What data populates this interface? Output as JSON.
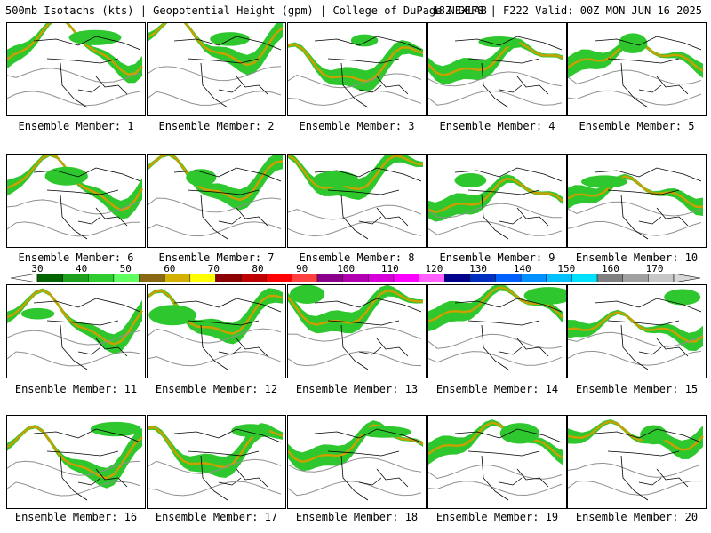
{
  "header": {
    "title": "500mb Isotachs (kts) | Geopotential Height (gpm) | College of DuPage NEXLAB",
    "run_info": "18Z GEFS | F222 Valid: 00Z MON JUN 16 2025"
  },
  "members": [
    {
      "caption": "Ensemble Member: 1"
    },
    {
      "caption": "Ensemble Member: 2"
    },
    {
      "caption": "Ensemble Member: 3"
    },
    {
      "caption": "Ensemble Member: 4"
    },
    {
      "caption": "Ensemble Member: 5"
    },
    {
      "caption": "Ensemble Member: 6"
    },
    {
      "caption": "Ensemble Member: 7"
    },
    {
      "caption": "Ensemble Member: 8"
    },
    {
      "caption": "Ensemble Member: 9"
    },
    {
      "caption": "Ensemble Member: 10"
    },
    {
      "caption": "Ensemble Member: 11"
    },
    {
      "caption": "Ensemble Member: 12"
    },
    {
      "caption": "Ensemble Member: 13"
    },
    {
      "caption": "Ensemble Member: 14"
    },
    {
      "caption": "Ensemble Member: 15"
    },
    {
      "caption": "Ensemble Member: 16"
    },
    {
      "caption": "Ensemble Member: 17"
    },
    {
      "caption": "Ensemble Member: 18"
    },
    {
      "caption": "Ensemble Member: 19"
    },
    {
      "caption": "Ensemble Member: 20"
    }
  ],
  "colorbar": {
    "labels": [
      "30",
      "40",
      "50",
      "60",
      "70",
      "80",
      "90",
      "100",
      "110",
      "120",
      "130",
      "140",
      "150",
      "160",
      "170"
    ],
    "colors": [
      "#006400",
      "#1fa01f",
      "#2ecc2e",
      "#60ff60",
      "#8b6914",
      "#d4b000",
      "#ffff00",
      "#8b0000",
      "#c00000",
      "#ff0000",
      "#ff4040",
      "#8b008b",
      "#b000b0",
      "#d800d8",
      "#ff00ff",
      "#ff60ff",
      "#00008b",
      "#0030c0",
      "#0060ff",
      "#0090ff",
      "#00c0ff",
      "#00e0ff",
      "#808080",
      "#a0a0a0",
      "#c8c8c8"
    ]
  },
  "map_style": {
    "jet_fill": "#2ec82e",
    "jet_core": "#1f8f1f",
    "jet_max": "#c8a000",
    "jet_peak": "#a00000",
    "height_contour": "#909090",
    "coastline": "#000000"
  }
}
